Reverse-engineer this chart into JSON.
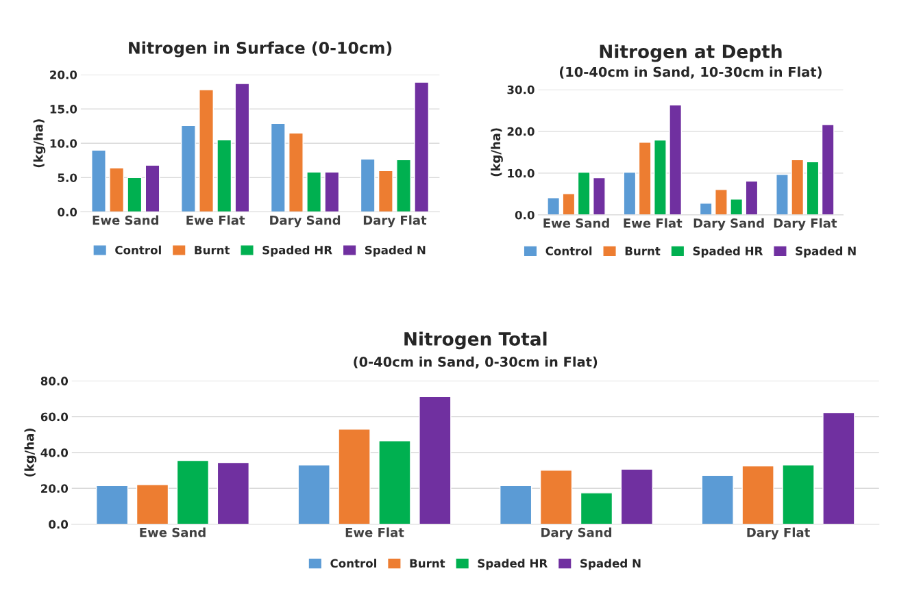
{
  "chart_data": [
    {
      "type": "bar",
      "title": "Nitrogen in Surface (0-10cm)",
      "ylabel": "(kg/ha)",
      "categories": [
        "Ewe Sand",
        "Ewe Flat",
        "Dary Sand",
        "Dary Flat"
      ],
      "ylim": [
        0,
        20
      ],
      "yticks": [
        {
          "value": 0,
          "label": "0.0"
        },
        {
          "value": 5,
          "label": "5.0"
        },
        {
          "value": 10,
          "label": "10.0"
        },
        {
          "value": 15,
          "label": "15.0"
        },
        {
          "value": 20,
          "label": "20.0"
        }
      ],
      "grid": "y",
      "legend": "bottom",
      "series": [
        {
          "name": "Control",
          "color": "#5b9bd5",
          "values": [
            9.0,
            12.6,
            12.9,
            7.7
          ]
        },
        {
          "name": "Burnt",
          "color": "#ed7d31",
          "values": [
            6.4,
            17.8,
            11.5,
            6.0
          ]
        },
        {
          "name": "Spaded HR",
          "color": "#00b050",
          "values": [
            5.0,
            10.5,
            5.8,
            7.6
          ]
        },
        {
          "name": "Spaded N",
          "color": "#7030a0",
          "values": [
            6.8,
            18.7,
            5.8,
            18.9
          ]
        }
      ]
    },
    {
      "type": "bar",
      "title": "Nitrogen at Depth",
      "subtitle": "(10-40cm in Sand, 10-30cm in Flat)",
      "ylabel": "(kg/ha)",
      "categories": [
        "Ewe Sand",
        "Ewe Flat",
        "Dary Sand",
        "Dary Flat"
      ],
      "ylim": [
        0,
        30
      ],
      "yticks": [
        {
          "value": 0,
          "label": "0.0"
        },
        {
          "value": 10,
          "label": "10.0"
        },
        {
          "value": 20,
          "label": "20.0"
        },
        {
          "value": 30,
          "label": "30.0"
        }
      ],
      "grid": "y",
      "legend": "bottom",
      "series": [
        {
          "name": "Control",
          "color": "#5b9bd5",
          "values": [
            4.1,
            10.2,
            2.8,
            9.7
          ]
        },
        {
          "name": "Burnt",
          "color": "#ed7d31",
          "values": [
            5.1,
            17.4,
            6.1,
            13.2
          ]
        },
        {
          "name": "Spaded HR",
          "color": "#00b050",
          "values": [
            10.2,
            17.9,
            3.8,
            12.7
          ]
        },
        {
          "name": "Spaded N",
          "color": "#7030a0",
          "values": [
            8.9,
            26.3,
            8.1,
            21.6
          ]
        }
      ]
    },
    {
      "type": "bar",
      "title": "Nitrogen Total",
      "subtitle": "(0-40cm in Sand, 0-30cm in Flat)",
      "ylabel": "(kg/ha)",
      "categories": [
        "Ewe Sand",
        "Ewe Flat",
        "Dary Sand",
        "Dary Flat"
      ],
      "ylim": [
        0,
        80
      ],
      "yticks": [
        {
          "value": 0,
          "label": "0.0"
        },
        {
          "value": 20,
          "label": "20.0"
        },
        {
          "value": 40,
          "label": "40.0"
        },
        {
          "value": 60,
          "label": "60.0"
        },
        {
          "value": 80,
          "label": "80.0"
        }
      ],
      "grid": "y",
      "legend": "bottom",
      "series": [
        {
          "name": "Control",
          "color": "#5b9bd5",
          "values": [
            21.5,
            33.1,
            21.5,
            27.3
          ]
        },
        {
          "name": "Burnt",
          "color": "#ed7d31",
          "values": [
            22.1,
            53.1,
            30.1,
            32.5
          ]
        },
        {
          "name": "Spaded HR",
          "color": "#00b050",
          "values": [
            35.6,
            46.6,
            17.5,
            33.1
          ]
        },
        {
          "name": "Spaded N",
          "color": "#7030a0",
          "values": [
            34.4,
            71.2,
            30.7,
            62.3
          ]
        }
      ]
    }
  ]
}
